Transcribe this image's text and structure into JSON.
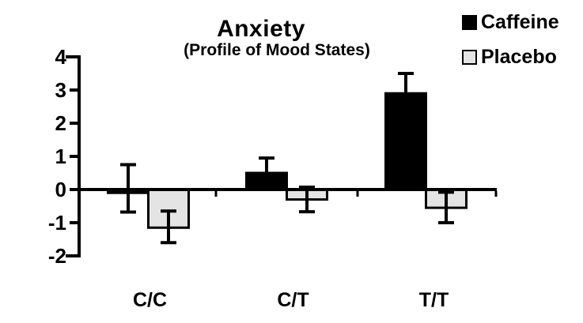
{
  "figure": {
    "title": "Anxiety",
    "subtitle": "(Profile of Mood States)"
  },
  "legend": {
    "items": [
      {
        "label": "Caffeine",
        "swatch": "filled-square",
        "fill": "#000000",
        "border": "#000000"
      },
      {
        "label": "Placebo",
        "swatch": "outlined-square",
        "fill": "#e4e4e4",
        "border": "#000000"
      }
    ]
  },
  "chart_data": {
    "type": "bar",
    "title": "Anxiety",
    "subtitle": "(Profile of Mood States)",
    "categories": [
      "C/C",
      "C/T",
      "T/T"
    ],
    "series": [
      {
        "name": "Caffeine",
        "color": "#000000",
        "values": [
          -0.1,
          0.5,
          2.9
        ],
        "err_high": [
          0.75,
          0.95,
          3.5
        ],
        "err_low": [
          -0.68,
          0.5,
          2.9
        ]
      },
      {
        "name": "Placebo",
        "color": "#e4e4e4",
        "values": [
          -1.15,
          -0.3,
          -0.55
        ],
        "err_high": [
          -0.65,
          0.07,
          -0.08
        ],
        "err_low": [
          -1.6,
          -0.67,
          -1.0
        ]
      }
    ],
    "ylim": [
      -2,
      4
    ],
    "yticks": [
      "4",
      "3",
      "2",
      "1",
      "0",
      "-1",
      "-2"
    ],
    "xlabel": "",
    "ylabel": "",
    "grid": false,
    "legend_position": "top-right",
    "error_bars": true,
    "bar_border_color": "#000000",
    "axis_color": "#000000"
  }
}
